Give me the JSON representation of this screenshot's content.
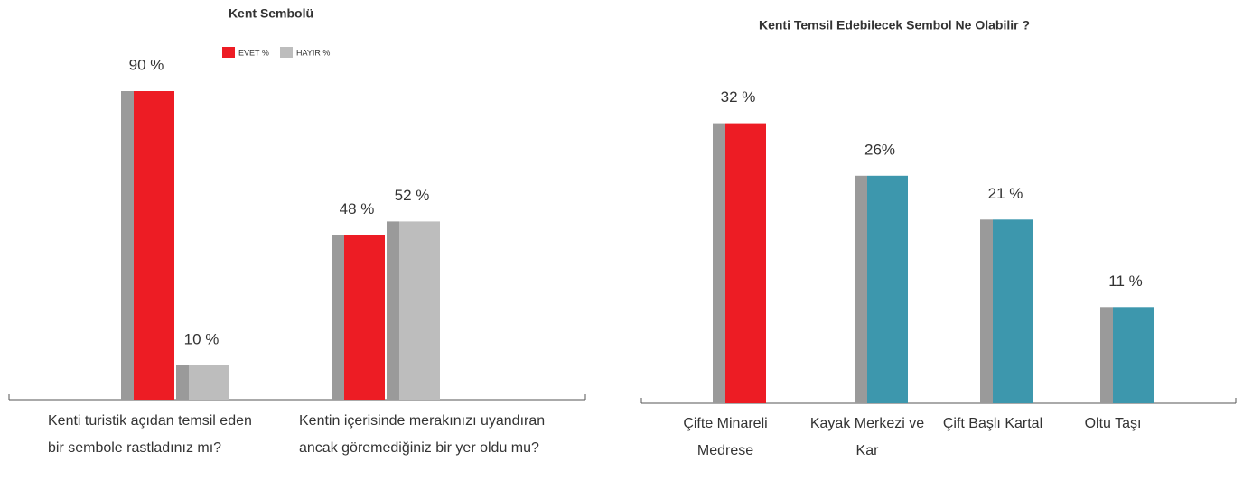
{
  "chart_data": [
    {
      "type": "bar",
      "title": "Kent Sembolü",
      "categories": [
        "Kenti turistik açıdan temsil eden bir sembole rastladınız mı?",
        "Kentin içerisinde merakınızı uyandıran ancak göremediğiniz bir yer oldu mu?"
      ],
      "series": [
        {
          "name": "EVET %",
          "color": "#ed1c24",
          "values": [
            90,
            48
          ],
          "value_labels": [
            "90 %",
            "48 %"
          ]
        },
        {
          "name": "HAYIR %",
          "color": "#bdbdbd",
          "values": [
            10,
            52
          ],
          "value_labels": [
            "10 %",
            "52 %"
          ]
        }
      ]
    },
    {
      "type": "bar",
      "title": "Kenti Temsil Edebilecek Sembol Ne Olabilir ?",
      "categories": [
        "Çifte Minareli Medrese",
        "Kayak Merkezi ve Kar",
        "Çift Başlı Kartal",
        "Oltu Taşı"
      ],
      "values": [
        32,
        26,
        21,
        11
      ],
      "value_labels": [
        "32 %",
        "26%",
        "21 %",
        "11 %"
      ],
      "colors": [
        "#ed1c24",
        "#3d97ad",
        "#3d97ad",
        "#3d97ad"
      ]
    }
  ]
}
